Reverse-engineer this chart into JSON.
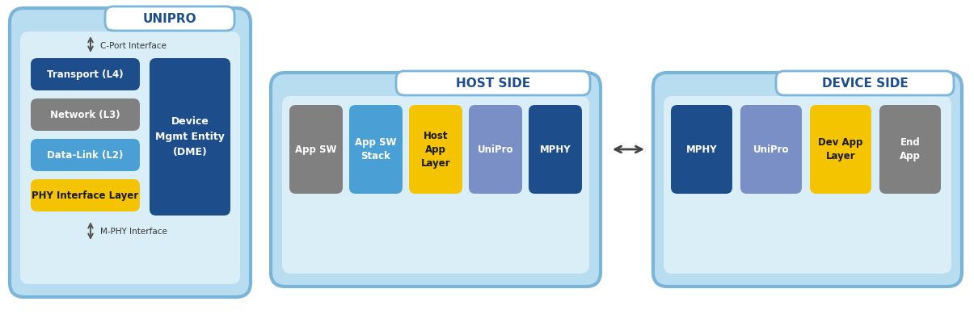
{
  "bg_color": "#ffffff",
  "dark_blue": "#1e4d8c",
  "sky_blue": "#7ab4d8",
  "light_blue_fill": "#b8ddf0",
  "inner_fill": "#daeef8",
  "gray_box": "#808080",
  "mid_blue_box": "#4a9fd4",
  "muted_purple": "#7b8fc7",
  "yellow_box": "#f5c400",
  "white": "#ffffff",
  "unipro_title": "UNIPRO",
  "host_title": "HOST SIDE",
  "device_title": "DEVICE SIDE",
  "cport_label": "C-Port Interface",
  "mphy_label": "M-PHY Interface",
  "arrow_color": "#555555"
}
